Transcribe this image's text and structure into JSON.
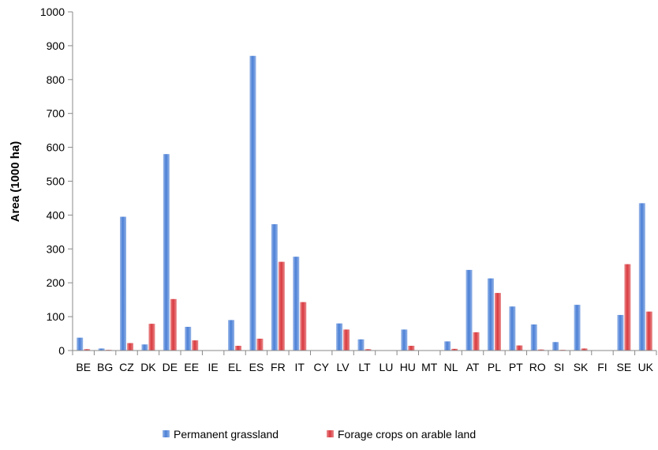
{
  "chart_data": {
    "type": "bar",
    "title": "",
    "xlabel": "",
    "ylabel": "Area (1000 ha)",
    "ylim": [
      0,
      1000
    ],
    "yticks": [
      0,
      100,
      200,
      300,
      400,
      500,
      600,
      700,
      800,
      900,
      1000
    ],
    "grid": false,
    "legend_position": "bottom",
    "categories": [
      "BE",
      "BG",
      "CZ",
      "DK",
      "DE",
      "EE",
      "IE",
      "EL",
      "ES",
      "FR",
      "IT",
      "CY",
      "LV",
      "LT",
      "LU",
      "HU",
      "MT",
      "NL",
      "AT",
      "PL",
      "PT",
      "RO",
      "SI",
      "SK",
      "FI",
      "SE",
      "UK"
    ],
    "series": [
      {
        "name": "Permanent grassland",
        "color": "#4a7fd6",
        "values": [
          38,
          6,
          395,
          18,
          580,
          70,
          0,
          90,
          870,
          373,
          277,
          0,
          80,
          33,
          0,
          62,
          0,
          27,
          238,
          213,
          130,
          77,
          25,
          135,
          0,
          105,
          435
        ]
      },
      {
        "name": "Forage crops on arable land",
        "color": "#d9393e",
        "values": [
          4,
          2,
          22,
          79,
          152,
          30,
          0,
          14,
          35,
          262,
          143,
          0,
          62,
          4,
          0,
          14,
          0,
          5,
          54,
          170,
          15,
          3,
          2,
          6,
          0,
          255,
          115
        ]
      }
    ]
  }
}
